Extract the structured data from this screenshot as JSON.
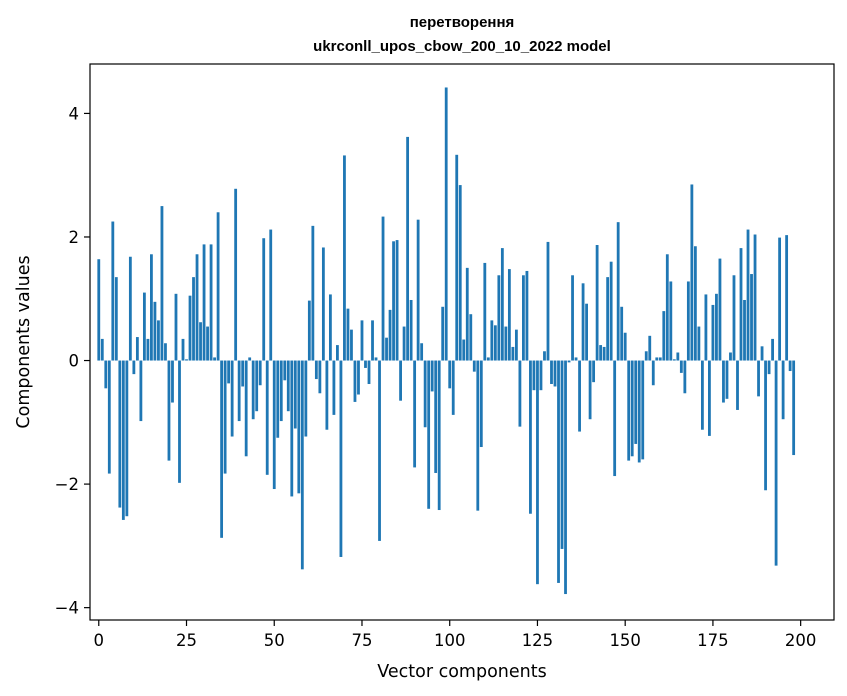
{
  "chart_data": {
    "type": "bar",
    "title_line1": "перетворення",
    "title_line2": "ukrconll_upos_cbow_200_10_2022 model",
    "xlabel": "Vector components",
    "ylabel": "Components values",
    "xlim": [
      -2.5,
      209.5
    ],
    "ylim": [
      -4.2,
      4.8
    ],
    "xticks": [
      0,
      25,
      50,
      75,
      100,
      125,
      150,
      175,
      200
    ],
    "yticks": [
      -4,
      -2,
      0,
      2,
      4
    ],
    "xtick_labels": [
      "0",
      "25",
      "50",
      "75",
      "100",
      "125",
      "150",
      "175",
      "200"
    ],
    "ytick_labels": [
      "−4",
      "−2",
      "0",
      "2",
      "4"
    ],
    "color": "#1f77b4",
    "values": [
      1.64,
      0.35,
      -0.45,
      -1.83,
      2.25,
      1.35,
      -2.38,
      -2.58,
      -2.52,
      1.68,
      -0.22,
      0.38,
      -0.98,
      1.1,
      0.35,
      1.72,
      0.95,
      0.65,
      2.5,
      0.28,
      -1.62,
      -0.68,
      1.08,
      -1.98,
      0.35,
      0.02,
      1.05,
      1.35,
      1.72,
      0.62,
      1.88,
      0.55,
      1.88,
      0.05,
      2.4,
      -2.87,
      -1.83,
      -0.37,
      -1.23,
      2.78,
      -0.98,
      -0.42,
      -1.55,
      0.05,
      -0.95,
      -0.82,
      -0.4,
      1.98,
      -1.85,
      2.12,
      -2.08,
      -1.25,
      -0.98,
      -0.32,
      -0.82,
      -2.2,
      -1.1,
      -2.15,
      -3.38,
      -1.23,
      0.97,
      2.18,
      -0.3,
      -0.53,
      1.83,
      -1.12,
      1.07,
      -0.88,
      0.25,
      -3.18,
      3.32,
      0.84,
      0.5,
      -0.67,
      -0.55,
      0.65,
      -0.12,
      -0.38,
      0.65,
      0.05,
      -2.92,
      2.33,
      0.37,
      0.82,
      1.93,
      1.95,
      -0.65,
      0.55,
      3.62,
      0.98,
      -1.73,
      2.28,
      0.28,
      -1.08,
      -2.4,
      -0.5,
      -1.82,
      -2.42,
      0.87,
      4.42,
      -0.45,
      -0.88,
      3.33,
      2.84,
      0.34,
      1.5,
      0.75,
      -0.18,
      -2.43,
      -1.4,
      1.58,
      0.05,
      0.65,
      0.57,
      1.38,
      1.82,
      0.55,
      1.48,
      0.22,
      0.5,
      -1.07,
      1.38,
      1.45,
      -2.48,
      -0.48,
      -3.62,
      -0.48,
      0.15,
      1.92,
      -0.38,
      -0.42,
      -3.6,
      -3.05,
      -3.78,
      -0.03,
      1.38,
      0.05,
      -1.15,
      1.25,
      0.92,
      -0.95,
      -0.35,
      1.87,
      0.25,
      0.22,
      1.35,
      1.6,
      -1.87,
      2.24,
      0.87,
      0.45,
      -1.62,
      -1.55,
      -1.35,
      -1.65,
      -1.6,
      0.15,
      0.4,
      -0.4,
      0.05,
      0.05,
      0.8,
      1.72,
      1.28,
      0.02,
      0.13,
      -0.2,
      -0.53,
      1.28,
      2.85,
      1.85,
      0.55,
      -1.12,
      1.07,
      -1.22,
      0.9,
      1.08,
      1.65,
      -0.68,
      -0.62,
      0.13,
      1.38,
      -0.8,
      1.82,
      0.98,
      2.12,
      1.4,
      2.04,
      -0.58,
      0.23,
      -2.1,
      -0.22,
      0.35,
      -3.32,
      1.99,
      -0.95,
      2.03,
      -0.17,
      -1.53
    ]
  }
}
